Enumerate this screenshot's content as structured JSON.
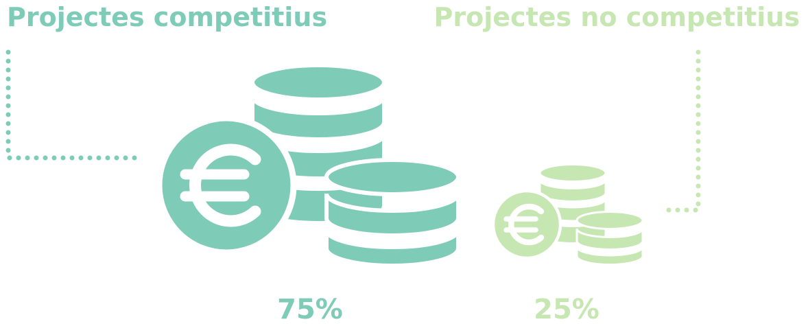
{
  "items": [
    {
      "label": "Projectes competitius",
      "value_label": "75%"
    },
    {
      "label": "Projectes no competitius",
      "value_label": "25%"
    }
  ]
}
